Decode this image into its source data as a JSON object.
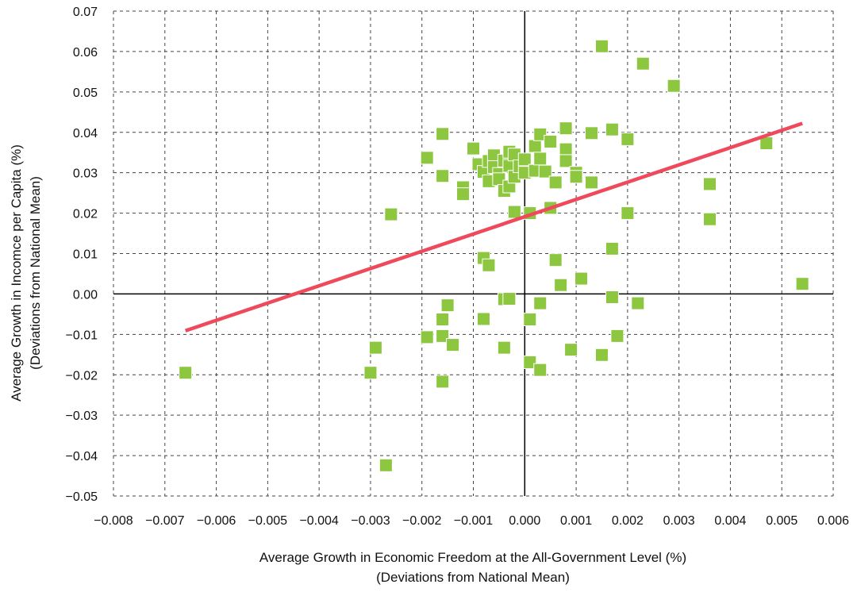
{
  "chart_data": {
    "type": "scatter",
    "title": "",
    "xlabel_lines": [
      "Average Growth in Economic Freedom at the All-Government Level (%)",
      "(Deviations from National Mean)"
    ],
    "ylabel_lines": [
      "Average Growth in Incomce per Capita (%)",
      "(Deviations from National Mean)"
    ],
    "xlim": [
      -0.008,
      0.006
    ],
    "ylim": [
      -0.05,
      0.07
    ],
    "x_ticks": [
      -0.008,
      -0.007,
      -0.006,
      -0.005,
      -0.004,
      -0.003,
      -0.002,
      -0.001,
      0.0,
      0.001,
      0.002,
      0.003,
      0.004,
      0.005,
      0.006
    ],
    "x_tick_labels": [
      "−0.008",
      "−0.007",
      "−0.006",
      "−0.005",
      "−0.004",
      "−0.003",
      "−0.002",
      "−0.001",
      "0.000",
      "0.001",
      "0.002",
      "0.003",
      "0.004",
      "0.005",
      "0.006"
    ],
    "y_ticks": [
      -0.05,
      -0.04,
      -0.03,
      -0.02,
      -0.01,
      0.0,
      0.01,
      0.02,
      0.03,
      0.04,
      0.05,
      0.06,
      0.07
    ],
    "y_tick_labels": [
      "−0.05",
      "−0.04",
      "−0.03",
      "−0.02",
      "−0.01",
      "0.00",
      "0.01",
      "0.02",
      "0.03",
      "0.04",
      "0.05",
      "0.06",
      "0.07"
    ],
    "grid": true,
    "grid_style": "dashed",
    "marker_color": "#8dc63f",
    "trend_color": "#ef4a5b",
    "trendline": {
      "x": [
        -0.0066,
        0.0054
      ],
      "y": [
        -0.0091,
        0.0422
      ]
    },
    "points": [
      {
        "x": -0.0066,
        "y": -0.0195
      },
      {
        "x": -0.003,
        "y": -0.0195
      },
      {
        "x": -0.0029,
        "y": -0.0133
      },
      {
        "x": -0.0027,
        "y": -0.0424
      },
      {
        "x": -0.0026,
        "y": 0.0197
      },
      {
        "x": -0.0019,
        "y": 0.0337
      },
      {
        "x": -0.0019,
        "y": -0.0107
      },
      {
        "x": -0.0016,
        "y": 0.0396
      },
      {
        "x": -0.0016,
        "y": 0.0292
      },
      {
        "x": -0.0016,
        "y": -0.0063
      },
      {
        "x": -0.0016,
        "y": -0.0104
      },
      {
        "x": -0.0016,
        "y": -0.0217
      },
      {
        "x": -0.0015,
        "y": -0.0028
      },
      {
        "x": -0.0014,
        "y": -0.0126
      },
      {
        "x": -0.0012,
        "y": 0.0264
      },
      {
        "x": -0.0012,
        "y": 0.0247
      },
      {
        "x": -0.001,
        "y": 0.036
      },
      {
        "x": -0.0009,
        "y": 0.0321
      },
      {
        "x": -0.0008,
        "y": 0.0302
      },
      {
        "x": -0.0008,
        "y": 0.0089
      },
      {
        "x": -0.0008,
        "y": -0.0062
      },
      {
        "x": -0.0007,
        "y": 0.0329
      },
      {
        "x": -0.0007,
        "y": 0.0279
      },
      {
        "x": -0.0007,
        "y": 0.0071
      },
      {
        "x": -0.0006,
        "y": 0.0343
      },
      {
        "x": -0.0006,
        "y": 0.0314
      },
      {
        "x": -0.0005,
        "y": 0.0297
      },
      {
        "x": -0.0005,
        "y": 0.0284
      },
      {
        "x": -0.0004,
        "y": 0.033
      },
      {
        "x": -0.0004,
        "y": 0.0255
      },
      {
        "x": -0.0004,
        "y": -0.0013
      },
      {
        "x": -0.0004,
        "y": -0.0133
      },
      {
        "x": -0.0003,
        "y": 0.0352
      },
      {
        "x": -0.0003,
        "y": 0.0317
      },
      {
        "x": -0.0003,
        "y": 0.0266
      },
      {
        "x": -0.0003,
        "y": -0.0012
      },
      {
        "x": -0.0002,
        "y": 0.0345
      },
      {
        "x": -0.0002,
        "y": 0.029
      },
      {
        "x": -0.0002,
        "y": 0.0203
      },
      {
        "x": -0.0001,
        "y": 0.0316
      },
      {
        "x": 0.0,
        "y": 0.0333
      },
      {
        "x": 0.0,
        "y": 0.03
      },
      {
        "x": 0.0001,
        "y": 0.02
      },
      {
        "x": 0.0001,
        "y": -0.0063
      },
      {
        "x": 0.0001,
        "y": -0.0169
      },
      {
        "x": 0.0002,
        "y": 0.0366
      },
      {
        "x": 0.0002,
        "y": 0.0305
      },
      {
        "x": 0.0003,
        "y": 0.0395
      },
      {
        "x": 0.0003,
        "y": 0.0335
      },
      {
        "x": 0.0003,
        "y": -0.0023
      },
      {
        "x": 0.0003,
        "y": -0.0188
      },
      {
        "x": 0.0004,
        "y": 0.0303
      },
      {
        "x": 0.0005,
        "y": 0.0377
      },
      {
        "x": 0.0005,
        "y": 0.0213
      },
      {
        "x": 0.0006,
        "y": 0.0276
      },
      {
        "x": 0.0006,
        "y": 0.0084
      },
      {
        "x": 0.0007,
        "y": 0.0022
      },
      {
        "x": 0.0008,
        "y": 0.041
      },
      {
        "x": 0.0008,
        "y": 0.0358
      },
      {
        "x": 0.0008,
        "y": 0.0329
      },
      {
        "x": 0.0009,
        "y": -0.0138
      },
      {
        "x": 0.001,
        "y": 0.03
      },
      {
        "x": 0.001,
        "y": 0.029
      },
      {
        "x": 0.0011,
        "y": 0.0038
      },
      {
        "x": 0.0013,
        "y": 0.0398
      },
      {
        "x": 0.0013,
        "y": 0.0276
      },
      {
        "x": 0.0015,
        "y": 0.0613
      },
      {
        "x": 0.0015,
        "y": -0.0151
      },
      {
        "x": 0.0017,
        "y": 0.0407
      },
      {
        "x": 0.0017,
        "y": 0.0112
      },
      {
        "x": 0.0017,
        "y": -0.0008
      },
      {
        "x": 0.0018,
        "y": -0.0104
      },
      {
        "x": 0.002,
        "y": 0.0383
      },
      {
        "x": 0.002,
        "y": 0.02
      },
      {
        "x": 0.0022,
        "y": -0.0023
      },
      {
        "x": 0.0023,
        "y": 0.057
      },
      {
        "x": 0.0029,
        "y": 0.0515
      },
      {
        "x": 0.0036,
        "y": 0.0272
      },
      {
        "x": 0.0036,
        "y": 0.0185
      },
      {
        "x": 0.0047,
        "y": 0.0373
      },
      {
        "x": 0.0054,
        "y": 0.0025
      }
    ]
  }
}
